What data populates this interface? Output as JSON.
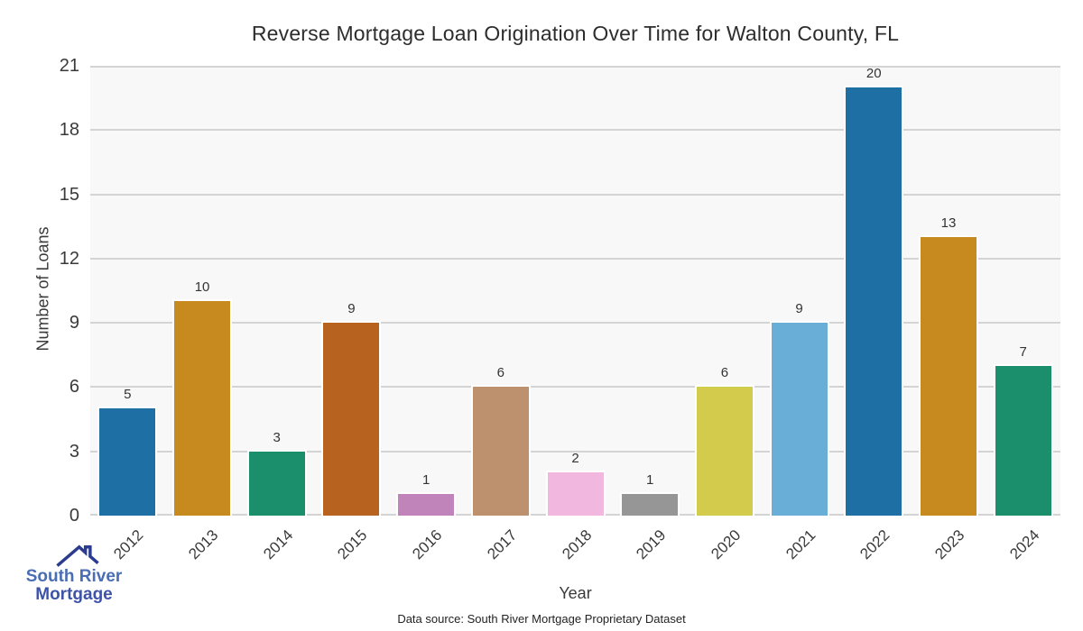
{
  "title": "Reverse Mortgage Loan Origination Over Time for Walton County, FL",
  "axes": {
    "x_label": "Year",
    "y_label": "Number of Loans"
  },
  "footer": "Data source: South River Mortgage Proprietary Dataset",
  "logo": {
    "line1": "South River",
    "line2": "Mortgage",
    "icon": "house-roof-icon",
    "text_color_primary": "#4a6db3",
    "text_color_secondary": "#3d53a8",
    "icon_color": "#2b3b8f"
  },
  "chart_data": {
    "type": "bar",
    "title": "Reverse Mortgage Loan Origination Over Time for Walton County, FL",
    "categories": [
      "2012",
      "2013",
      "2014",
      "2015",
      "2016",
      "2017",
      "2018",
      "2019",
      "2020",
      "2021",
      "2022",
      "2023",
      "2024"
    ],
    "values": [
      5,
      10,
      3,
      9,
      1,
      6,
      2,
      1,
      6,
      9,
      20,
      13,
      7
    ],
    "bar_colors": [
      "#1d6fa4",
      "#c78a1f",
      "#1b8f6b",
      "#b7621f",
      "#c084bb",
      "#bd916e",
      "#f2b7de",
      "#969696",
      "#d3cb4c",
      "#68aed7",
      "#1d6fa4",
      "#c78a1f",
      "#1b8f6b"
    ],
    "xlabel": "Year",
    "ylabel": "Number of Loans",
    "ylim": [
      0,
      21
    ],
    "y_ticks": [
      0,
      3,
      6,
      9,
      12,
      15,
      18,
      21
    ],
    "grid": "horizontal",
    "gridline_color": "#d4d4d4",
    "plot_bg": "#f8f8f8",
    "value_labels": true,
    "legend": "none"
  }
}
